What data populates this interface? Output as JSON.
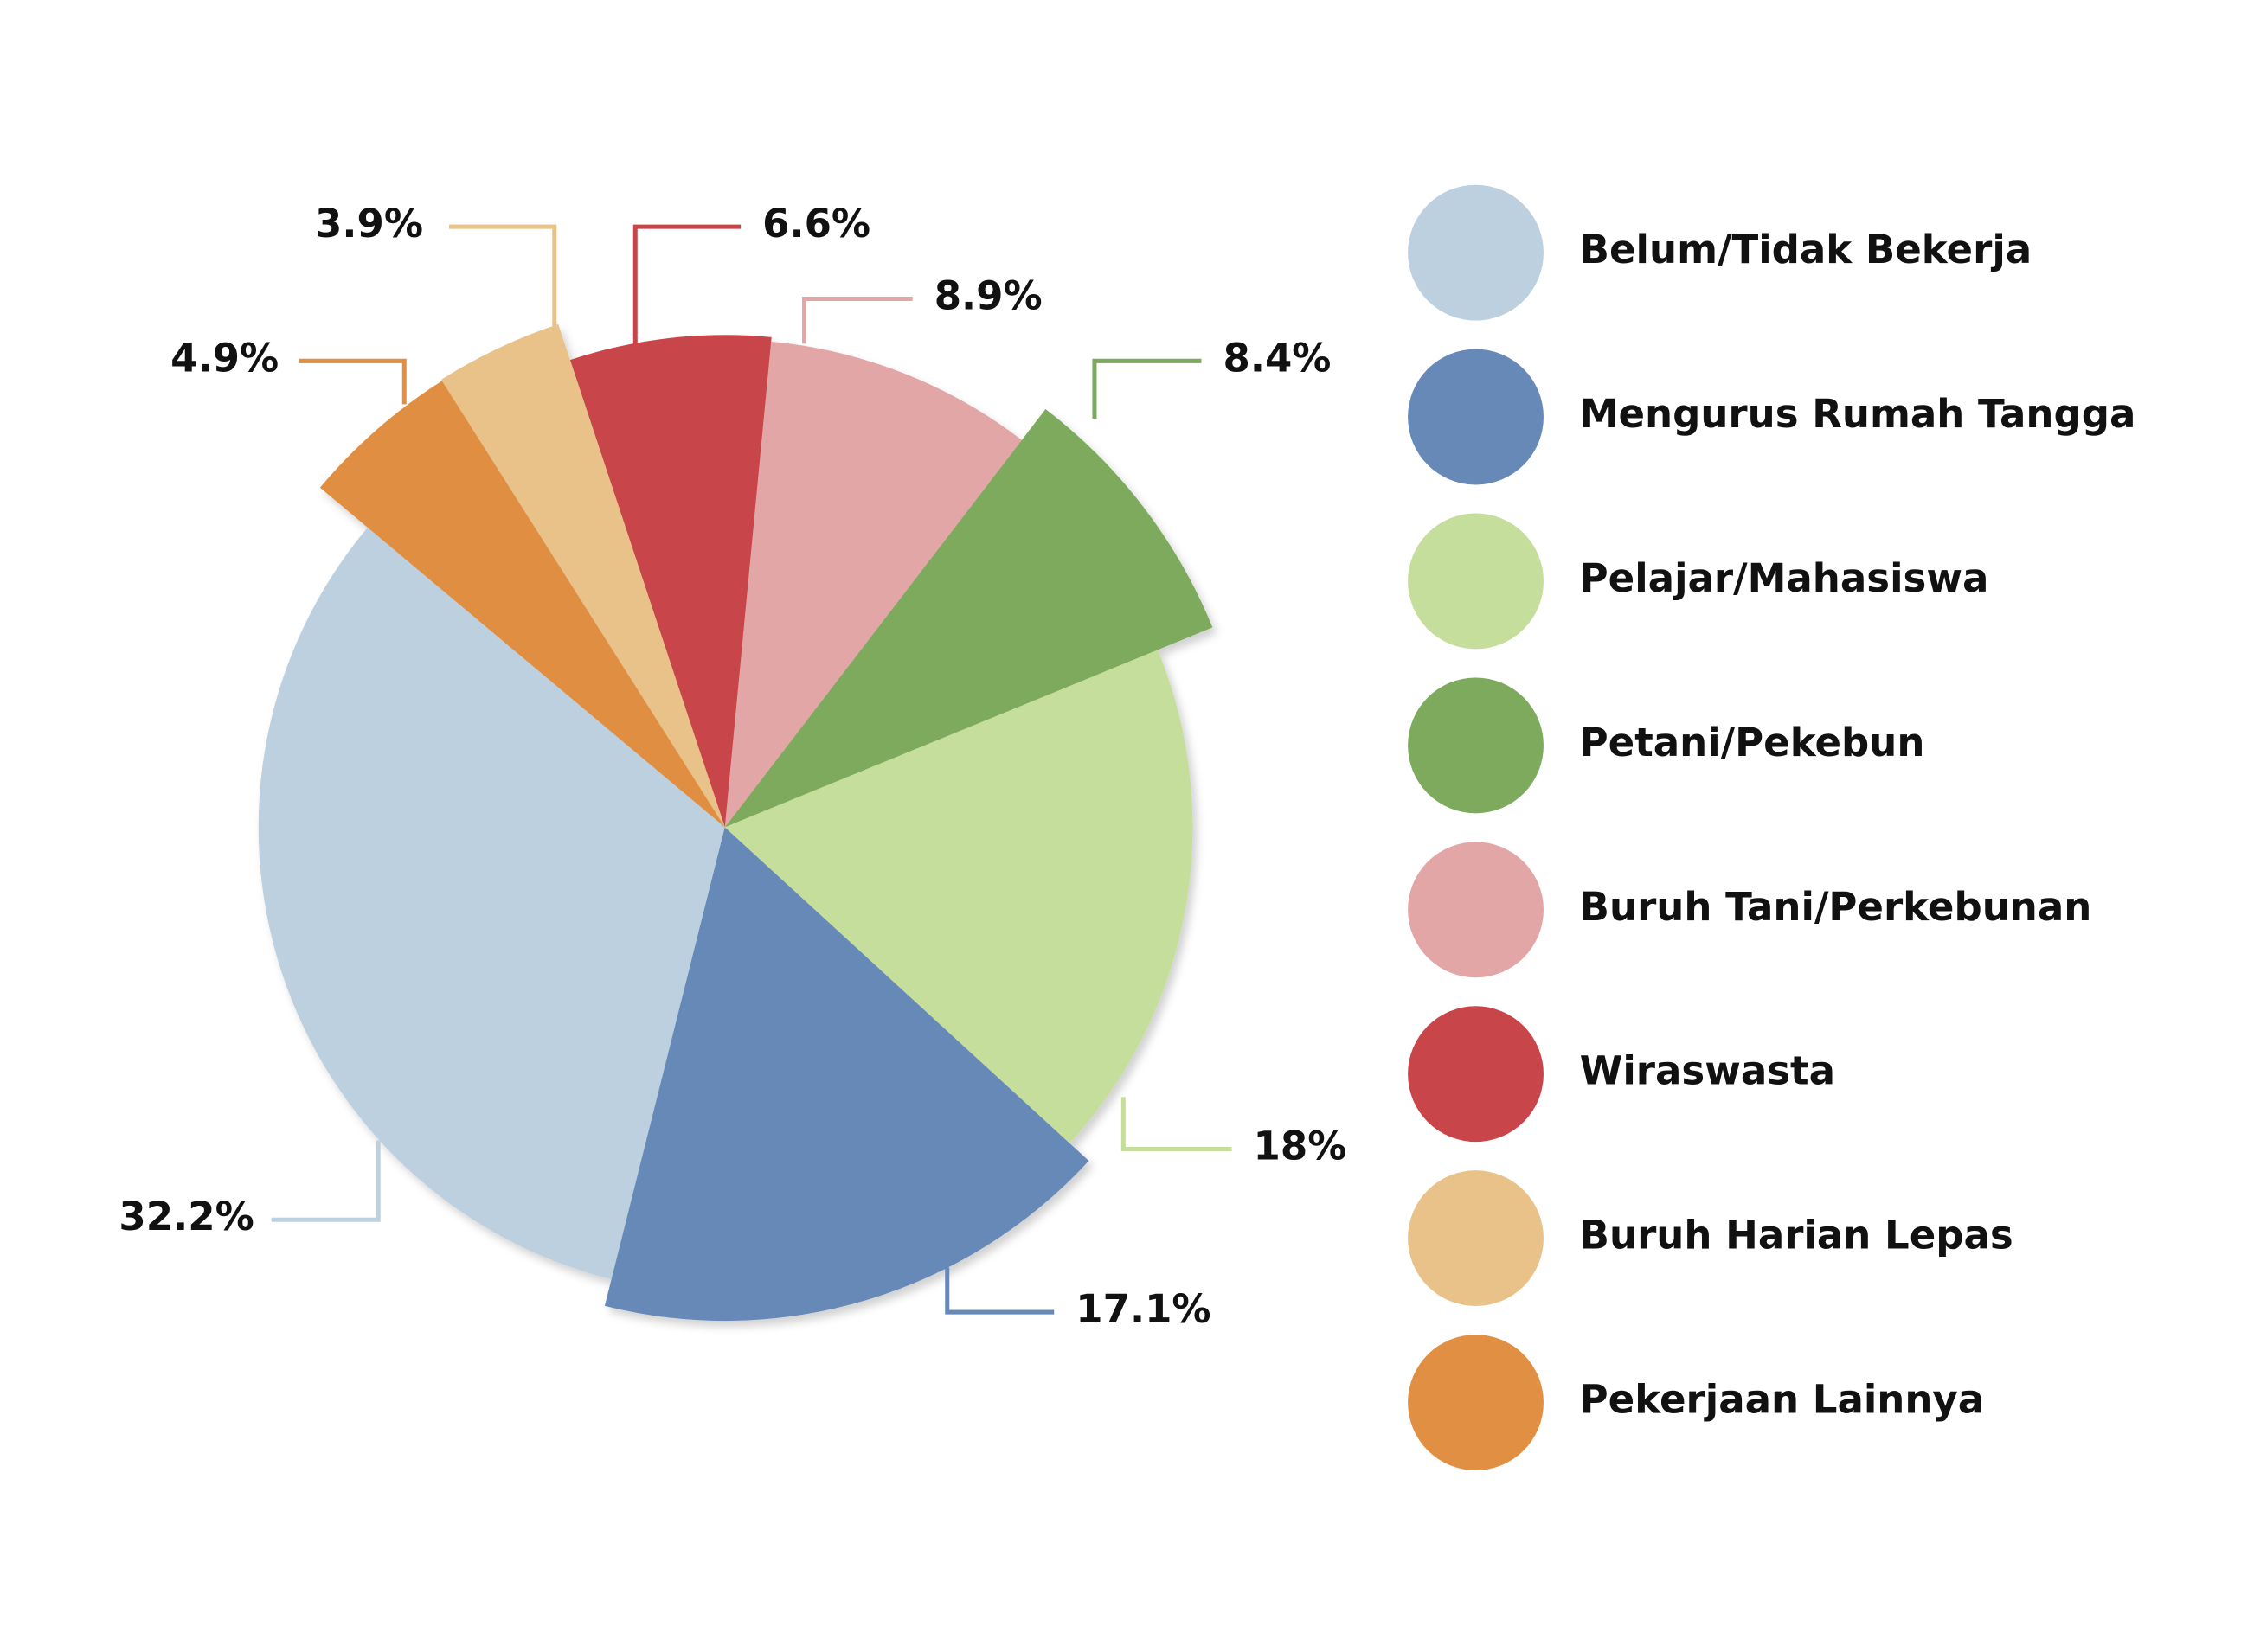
{
  "chart_data": {
    "type": "pie",
    "categories": [
      "Belum/Tidak Bekerja",
      "Mengurus Rumah Tangga",
      "Pelajar/Mahasiswa",
      "Petani/Pekebun",
      "Buruh Tani/Perkebunan",
      "Wiraswasta",
      "Buruh Harian Lepas",
      "Pekerjaan Lainnya"
    ],
    "values": [
      32.2,
      17.1,
      18,
      8.4,
      8.9,
      6.6,
      3.9,
      4.9
    ],
    "value_labels": [
      "32.2%",
      "17.1%",
      "18%",
      "8.4%",
      "8.9%",
      "6.6%",
      "3.9%",
      "4.9%"
    ],
    "colors": [
      "#bdd0df",
      "#6689b8",
      "#c5de9c",
      "#7daa5c",
      "#e2a6a7",
      "#c8454a",
      "#e9c28a",
      "#e08f43"
    ]
  }
}
